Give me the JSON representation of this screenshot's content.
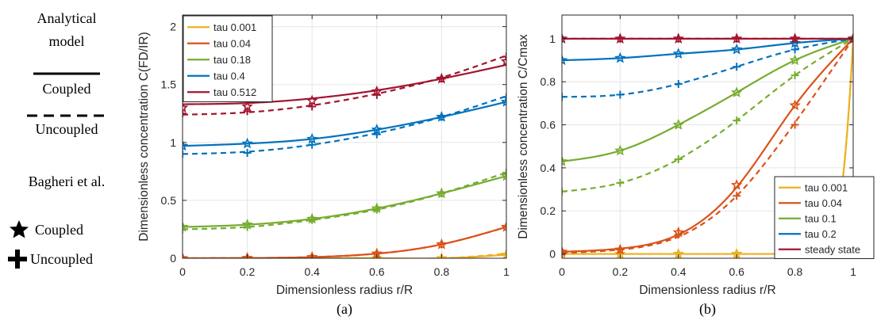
{
  "side_legend": {
    "model_heading_line1": "Analytical",
    "model_heading_line2": "model",
    "coupled_label": "Coupled",
    "uncoupled_label": "Uncoupled",
    "ref_heading": "Bagheri et al.",
    "ref_coupled_label": "Coupled",
    "ref_uncoupled_label": "Uncoupled"
  },
  "chart_data": [
    {
      "type": "line",
      "panel_label": "(a)",
      "xlabel": "Dimensionless radius r/R",
      "ylabel": "Dimensionless concentration C(FD/IR)",
      "xlim": [
        0,
        1
      ],
      "ylim": [
        0,
        2.1
      ],
      "xticks": [
        "0",
        "0.2",
        "0.4",
        "0.6",
        "0.8",
        "1"
      ],
      "yticks": [
        "0",
        "0.5",
        "1",
        "1.5",
        "2"
      ],
      "grid": true,
      "legend_position": "top-left",
      "x": [
        0,
        0.2,
        0.4,
        0.6,
        0.8,
        1
      ],
      "series": [
        {
          "name": "tau 0.001",
          "color": "#EDB120",
          "coupled": [
            0,
            0,
            0,
            0,
            0,
            0.03
          ],
          "uncoupled": [
            0,
            0,
            0,
            0,
            0,
            0.04
          ],
          "marks_coupled": [
            0,
            0,
            0,
            0,
            0,
            0.03
          ],
          "marks_uncoupled": [
            0,
            0,
            0,
            0,
            0,
            0.04
          ]
        },
        {
          "name": "tau 0.04",
          "color": "#D95319",
          "coupled": [
            0,
            0.002,
            0.01,
            0.04,
            0.12,
            0.27
          ],
          "uncoupled": [
            0,
            0.002,
            0.01,
            0.04,
            0.12,
            0.27
          ],
          "marks_coupled": [
            0,
            0.002,
            0.01,
            0.04,
            0.12,
            0.27
          ],
          "marks_uncoupled": [
            0,
            0.002,
            0.01,
            0.04,
            0.12,
            0.27
          ]
        },
        {
          "name": "tau 0.18",
          "color": "#77AC30",
          "coupled": [
            0.27,
            0.29,
            0.34,
            0.43,
            0.56,
            0.71
          ],
          "uncoupled": [
            0.25,
            0.27,
            0.33,
            0.42,
            0.56,
            0.74
          ],
          "marks_coupled": [
            0.27,
            0.29,
            0.34,
            0.43,
            0.56,
            0.71
          ],
          "marks_uncoupled": [
            0.25,
            0.27,
            0.33,
            0.42,
            0.56,
            0.74
          ]
        },
        {
          "name": "tau 0.4",
          "color": "#0072BD",
          "coupled": [
            0.97,
            0.99,
            1.03,
            1.11,
            1.22,
            1.35
          ],
          "uncoupled": [
            0.9,
            0.92,
            0.98,
            1.08,
            1.22,
            1.4
          ],
          "marks_coupled": [
            0.97,
            0.99,
            1.03,
            1.11,
            1.22,
            1.35
          ],
          "marks_uncoupled": [
            0.9,
            0.91,
            0.98,
            1.07,
            1.22,
            1.39
          ]
        },
        {
          "name": "tau 0.512",
          "color": "#A2142F",
          "coupled": [
            1.33,
            1.34,
            1.38,
            1.45,
            1.55,
            1.67
          ],
          "uncoupled": [
            1.24,
            1.26,
            1.32,
            1.42,
            1.56,
            1.75
          ],
          "marks_coupled": [
            1.3,
            1.31,
            1.36,
            1.44,
            1.55,
            1.7
          ],
          "marks_uncoupled": [
            1.25,
            1.27,
            1.31,
            1.41,
            1.55,
            1.74
          ]
        }
      ]
    },
    {
      "type": "line",
      "panel_label": "(b)",
      "xlabel": "Dimensionless radius r/R",
      "ylabel": "Dimensionless concentration C/Cmax",
      "xlim": [
        0,
        1
      ],
      "ylim": [
        -0.02,
        1.11
      ],
      "xticks": [
        "0",
        "0.2",
        "0.4",
        "0.6",
        "0.8",
        "1"
      ],
      "yticks": [
        "0",
        "0.2",
        "0.4",
        "0.6",
        "0.8",
        "1"
      ],
      "grid": true,
      "legend_position": "bottom-right",
      "x": [
        0,
        0.2,
        0.4,
        0.6,
        0.8,
        1
      ],
      "series": [
        {
          "name": "tau 0.001",
          "color": "#EDB120",
          "coupled": [
            0,
            0,
            0,
            0,
            0,
            1
          ],
          "uncoupled": [
            0,
            0,
            0,
            0,
            0,
            1
          ],
          "marks_coupled": [
            0,
            0,
            0,
            0,
            0,
            1
          ],
          "marks_uncoupled": [
            0,
            0,
            0,
            0,
            0,
            1
          ]
        },
        {
          "name": "tau 0.04",
          "color": "#D95319",
          "coupled": [
            0.01,
            0.025,
            0.09,
            0.31,
            0.69,
            1
          ],
          "uncoupled": [
            0.005,
            0.02,
            0.08,
            0.27,
            0.61,
            1
          ],
          "marks_coupled": [
            0.01,
            0.02,
            0.1,
            0.32,
            0.69,
            1
          ],
          "marks_uncoupled": [
            0.005,
            0.02,
            0.09,
            0.27,
            0.6,
            1
          ]
        },
        {
          "name": "tau 0.1",
          "color": "#77AC30",
          "coupled": [
            0.43,
            0.48,
            0.6,
            0.75,
            0.9,
            1
          ],
          "uncoupled": [
            0.29,
            0.33,
            0.44,
            0.62,
            0.83,
            1
          ],
          "marks_coupled": [
            0.43,
            0.48,
            0.6,
            0.75,
            0.9,
            1
          ],
          "marks_uncoupled": [
            0.29,
            0.33,
            0.44,
            0.62,
            0.83,
            1
          ]
        },
        {
          "name": "tau 0.2",
          "color": "#0072BD",
          "coupled": [
            0.9,
            0.91,
            0.93,
            0.95,
            0.98,
            1
          ],
          "uncoupled": [
            0.73,
            0.74,
            0.79,
            0.87,
            0.95,
            1
          ],
          "marks_coupled": [
            0.9,
            0.91,
            0.93,
            0.95,
            0.98,
            1
          ],
          "marks_uncoupled": [
            0.73,
            0.74,
            0.79,
            0.87,
            0.95,
            1
          ]
        },
        {
          "name": "steady state",
          "color": "#A2142F",
          "coupled": [
            1,
            1,
            1,
            1,
            1,
            1
          ],
          "uncoupled": [
            1,
            1,
            1,
            1,
            1,
            1
          ],
          "marks_coupled": [
            1,
            1,
            1,
            1,
            1,
            1
          ],
          "marks_uncoupled": [
            1,
            1,
            1,
            1,
            1,
            1
          ]
        }
      ]
    }
  ]
}
